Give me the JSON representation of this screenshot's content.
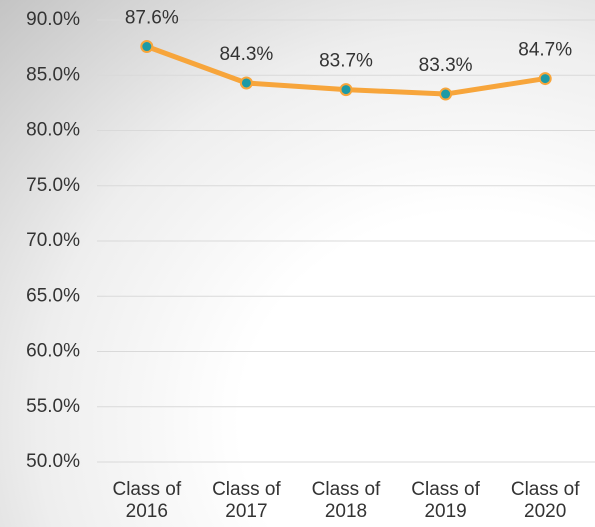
{
  "chart_data": {
    "type": "line",
    "categories": [
      "Class of 2016",
      "Class of 2017",
      "Class of 2018",
      "Class of 2019",
      "Class of 2020"
    ],
    "series": [
      {
        "color": "#f7a53b",
        "marker_color": "#1d9aa6",
        "values": [
          87.6,
          84.3,
          83.7,
          83.3,
          84.7
        ],
        "value_labels": [
          "87.6%",
          "84.3%",
          "83.7%",
          "83.3%",
          "84.7%"
        ]
      }
    ],
    "ylim": [
      50,
      90
    ],
    "yticks": [
      {
        "value": 50,
        "label": "50.0%"
      },
      {
        "value": 55,
        "label": "55.0%"
      },
      {
        "value": 60,
        "label": "60.0%"
      },
      {
        "value": 65,
        "label": "65.0%"
      },
      {
        "value": 70,
        "label": "70.0%"
      },
      {
        "value": 75,
        "label": "75.0%"
      },
      {
        "value": 80,
        "label": "80.0%"
      },
      {
        "value": 85,
        "label": "85.0%"
      },
      {
        "value": 90,
        "label": "90.0%"
      }
    ],
    "grid": true
  }
}
